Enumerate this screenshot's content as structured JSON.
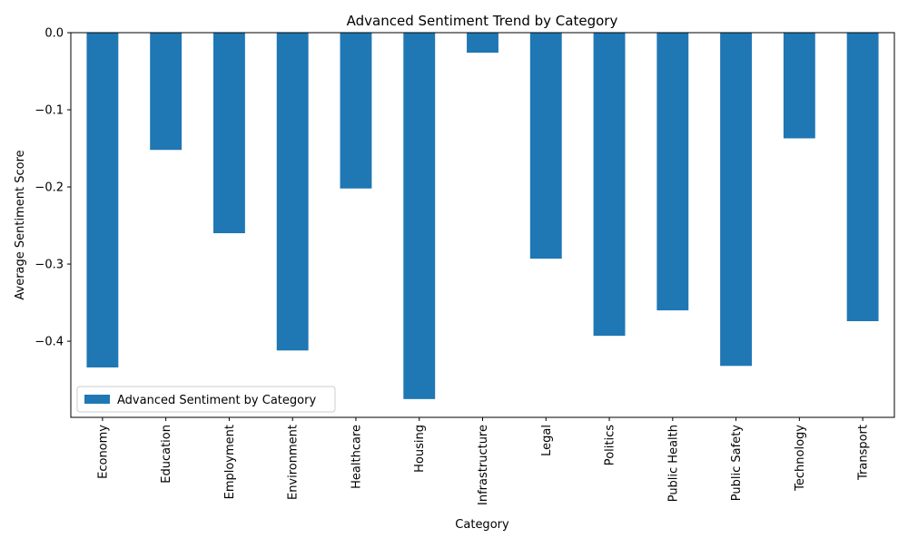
{
  "chart_data": {
    "type": "bar",
    "title": "Advanced Sentiment Trend by Category",
    "xlabel": "Category",
    "ylabel": "Average Sentiment Score",
    "categories": [
      "Economy",
      "Education",
      "Employment",
      "Environment",
      "Healthcare",
      "Housing",
      "Infrastructure",
      "Legal",
      "Politics",
      "Public Health",
      "Public Safety",
      "Technology",
      "Transport"
    ],
    "series": [
      {
        "name": "Advanced Sentiment by Category",
        "values": [
          -0.434,
          -0.152,
          -0.26,
          -0.412,
          -0.202,
          -0.475,
          -0.026,
          -0.293,
          -0.393,
          -0.36,
          -0.432,
          -0.137,
          -0.374
        ]
      }
    ],
    "yticks": [
      0.0,
      -0.1,
      -0.2,
      -0.3,
      -0.4
    ],
    "ytick_labels": [
      "0.0",
      "−0.1",
      "−0.2",
      "−0.3",
      "−0.4"
    ],
    "ylim": [
      -0.4987,
      0.0
    ],
    "grid": false,
    "legend_position": "lower-left",
    "colors": {
      "bar": "#1f77b4",
      "axis": "#000000",
      "background": "#ffffff"
    }
  }
}
